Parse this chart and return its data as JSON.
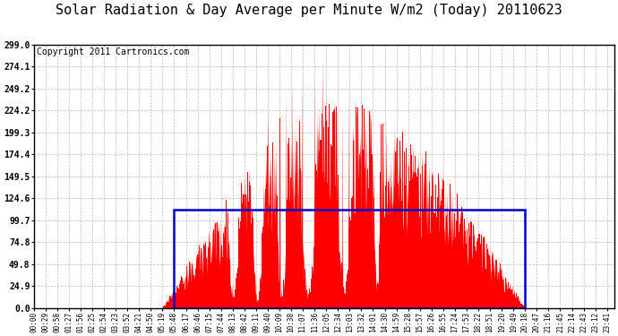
{
  "title": "Solar Radiation & Day Average per Minute W/m2 (Today) 20110623",
  "copyright": "Copyright 2011 Cartronics.com",
  "yticks": [
    0.0,
    24.9,
    49.8,
    74.8,
    99.7,
    124.6,
    149.5,
    174.4,
    199.3,
    224.2,
    249.2,
    274.1,
    299.0
  ],
  "ymax": 299.0,
  "bar_color": "#FF0000",
  "avg_line_color": "#0000CC",
  "avg_line_level": 112.0,
  "background_color": "#FFFFFF",
  "grid_color": "#AAAAAA",
  "title_fontsize": 11,
  "copyright_fontsize": 7,
  "x_tick_interval_min": 29,
  "total_minutes": 1440,
  "sunrise_min": 319,
  "sunset_min": 1218
}
